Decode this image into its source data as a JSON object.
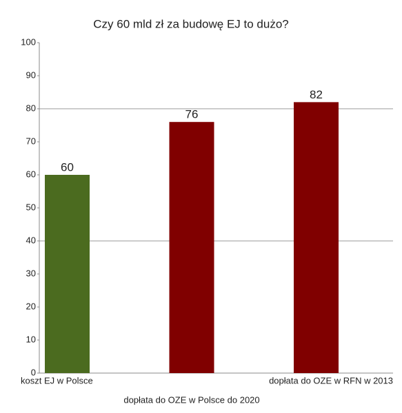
{
  "chart_data": {
    "type": "bar",
    "title": "Czy 60 mld zł za budowę EJ to dużo?",
    "categories": [
      "koszt EJ w Polsce",
      "dopłata do OZE w Polsce do 2020",
      "dopłata do OZE w RFN w 2013"
    ],
    "values": [
      60,
      76,
      82
    ],
    "colors": [
      "#4b6b1f",
      "#800000",
      "#800000"
    ],
    "ylim": [
      0,
      100
    ],
    "yticks": [
      0,
      10,
      20,
      30,
      40,
      50,
      60,
      70,
      80,
      90,
      100
    ],
    "gridlines": [
      40,
      80
    ]
  }
}
